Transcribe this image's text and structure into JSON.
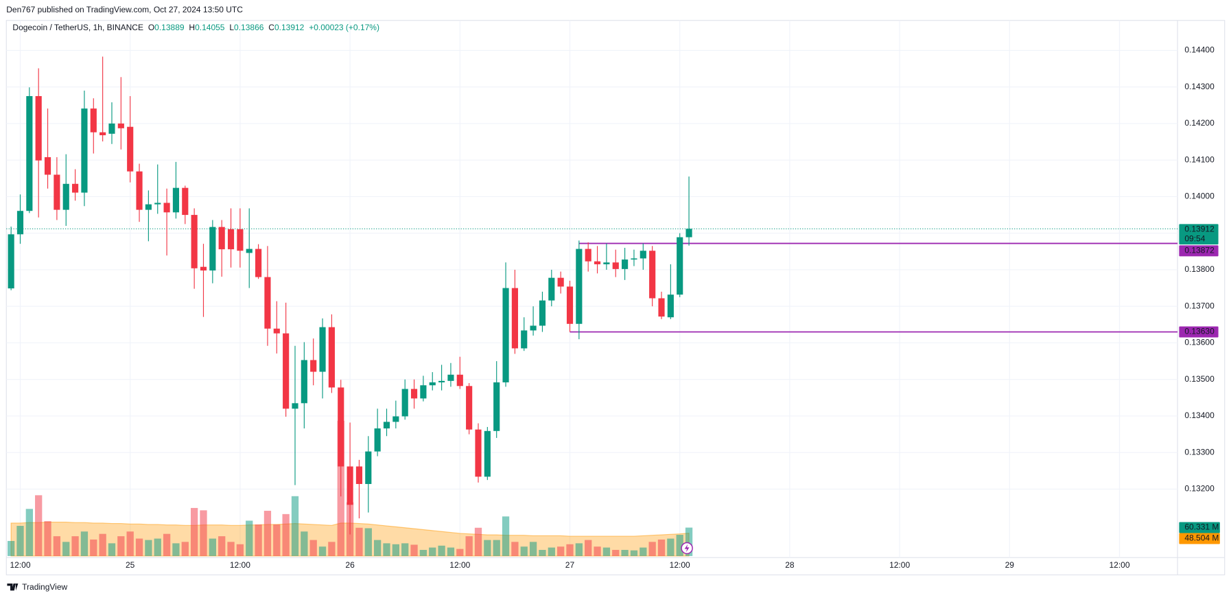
{
  "header": "Den767 published on TradingView.com, Oct 27, 2024 13:50 UTC",
  "footer": "TradingView",
  "chart_data": {
    "type": "candlestick",
    "symbol": "Dogecoin / TetherUS, 1h, BINANCE",
    "legend": {
      "open": {
        "label": "O",
        "value": "0.13889"
      },
      "high": {
        "label": "H",
        "value": "0.14055"
      },
      "low": {
        "label": "L",
        "value": "0.13866"
      },
      "close": {
        "label": "C",
        "value": "0.13912"
      },
      "change": "+0.00023 (+0.17%)"
    },
    "up_color": "#089981",
    "down_color": "#f23645",
    "open": [
      0.13749,
      0.13897,
      0.13961,
      0.14275,
      0.14108,
      0.1406,
      0.13964,
      0.14035,
      0.14011,
      0.14241,
      0.14176,
      0.14172,
      0.142,
      0.14191,
      0.14069,
      0.13964,
      0.13979,
      0.13983,
      0.13957,
      0.14024,
      0.1395,
      0.13808,
      0.13798,
      0.13917,
      0.13911,
      0.13911,
      0.13846,
      0.13857,
      0.1378,
      0.13639,
      0.13626,
      0.1342,
      0.13435,
      0.13553,
      0.13521,
      0.13643,
      0.13478,
      0.13262,
      0.13262,
      0.13214,
      0.13303,
      0.13366,
      0.13384,
      0.13399,
      0.13474,
      0.13448,
      0.13484,
      0.13492,
      0.13496,
      0.13513,
      0.13482,
      0.13363,
      0.13234,
      0.13359,
      0.13492,
      0.1375,
      0.13585,
      0.13634,
      0.13647,
      0.13716,
      0.13778,
      0.13754,
      0.13652,
      0.13857,
      0.13823,
      0.13815,
      0.1382,
      0.13802,
      0.13828,
      0.13831,
      0.13852,
      0.13722,
      0.1367,
      0.13732,
      0.13889
    ],
    "high": [
      0.13918,
      0.14006,
      0.14299,
      0.14351,
      0.14241,
      0.14108,
      0.14116,
      0.14075,
      0.1429,
      0.14269,
      0.14383,
      0.14258,
      0.14327,
      0.14275,
      0.1409,
      0.14017,
      0.14088,
      0.14022,
      0.14095,
      0.1403,
      0.13968,
      0.13871,
      0.13936,
      0.13936,
      0.13968,
      0.13968,
      0.13968,
      0.1387,
      0.13865,
      0.13714,
      0.1371,
      0.13592,
      0.13602,
      0.13612,
      0.13667,
      0.13678,
      0.13499,
      0.13382,
      0.1328,
      0.13345,
      0.1342,
      0.1342,
      0.13442,
      0.135,
      0.135,
      0.1351,
      0.1352,
      0.1354,
      0.13545,
      0.13562,
      0.1349,
      0.1338,
      0.1337,
      0.1355,
      0.1382,
      0.138,
      0.1367,
      0.137,
      0.1374,
      0.138,
      0.13795,
      0.1377,
      0.1388,
      0.13875,
      0.13865,
      0.13872,
      0.13855,
      0.1386,
      0.13855,
      0.13872,
      0.13865,
      0.1374,
      0.13815,
      0.139,
      0.14055
    ],
    "low": [
      0.13744,
      0.13871,
      0.13955,
      0.13943,
      0.14022,
      0.13936,
      0.1392,
      0.13989,
      0.13974,
      0.14118,
      0.14151,
      0.14144,
      0.14129,
      0.14039,
      0.13931,
      0.13878,
      0.13953,
      0.13839,
      0.1394,
      0.13925,
      0.13748,
      0.13671,
      0.13763,
      0.13781,
      0.13806,
      0.13806,
      0.1375,
      0.13775,
      0.13592,
      0.13571,
      0.13398,
      0.13211,
      0.13366,
      0.13484,
      0.13448,
      0.13463,
      0.1318,
      0.13076,
      0.1312,
      0.13136,
      0.1329,
      0.13345,
      0.13366,
      0.1339,
      0.1342,
      0.1344,
      0.1347,
      0.1347,
      0.1348,
      0.13474,
      0.1335,
      0.13218,
      0.13225,
      0.1334,
      0.1348,
      0.1357,
      0.13578,
      0.1362,
      0.1363,
      0.137,
      0.13735,
      0.1363,
      0.1361,
      0.13795,
      0.1379,
      0.138,
      0.1378,
      0.13772,
      0.1381,
      0.138,
      0.137,
      0.13665,
      0.13665,
      0.13725,
      0.13866
    ],
    "close": [
      0.13897,
      0.13961,
      0.14275,
      0.14099,
      0.1406,
      0.13964,
      0.14035,
      0.14011,
      0.14241,
      0.14176,
      0.14168,
      0.142,
      0.14187,
      0.14069,
      0.13964,
      0.13979,
      0.13983,
      0.13957,
      0.14024,
      0.1395,
      0.13804,
      0.13798,
      0.13917,
      0.13856,
      0.13856,
      0.13852,
      0.13857,
      0.1378,
      0.13639,
      0.13626,
      0.1342,
      0.13435,
      0.13553,
      0.13521,
      0.13643,
      0.13478,
      0.13262,
      0.13157,
      0.13214,
      0.13303,
      0.13366,
      0.13384,
      0.13399,
      0.13474,
      0.13448,
      0.13484,
      0.13492,
      0.13496,
      0.13513,
      0.13482,
      0.13363,
      0.13234,
      0.13359,
      0.13492,
      0.1375,
      0.13585,
      0.13634,
      0.13647,
      0.13716,
      0.13778,
      0.13754,
      0.13652,
      0.13857,
      0.13823,
      0.13815,
      0.1382,
      0.13802,
      0.13828,
      0.13831,
      0.13852,
      0.13722,
      0.13672,
      0.13732,
      0.13889,
      0.13912
    ],
    "volume": [
      32,
      64,
      100,
      129,
      74,
      42,
      30,
      42,
      52,
      35,
      47,
      27,
      42,
      52,
      37,
      34,
      37,
      47,
      27,
      30,
      102,
      97,
      37,
      42,
      30,
      25,
      75,
      67,
      96,
      67,
      89,
      127,
      52,
      34,
      20,
      30,
      287,
      114,
      60,
      59,
      34,
      27,
      25,
      27,
      24,
      13,
      18,
      22,
      18,
      15,
      42,
      60,
      34,
      34,
      84,
      30,
      20,
      30,
      13,
      18,
      20,
      25,
      27,
      34,
      20,
      18,
      13,
      13,
      12,
      18,
      30,
      35,
      37,
      45,
      60.331
    ],
    "volume_ma": [
      70,
      70,
      71,
      71,
      72,
      72,
      72,
      71,
      71,
      70,
      70,
      69,
      69,
      68,
      68,
      67,
      67,
      66,
      66,
      65,
      65,
      66,
      66,
      66,
      65,
      65,
      66,
      66,
      67,
      67,
      68,
      69,
      68,
      67,
      66,
      65,
      70,
      70,
      69,
      68,
      66,
      64,
      62,
      60,
      58,
      56,
      54,
      52,
      50,
      48,
      47,
      46,
      45,
      45,
      44,
      44,
      44,
      43,
      43,
      43,
      43,
      42,
      42,
      42,
      42,
      42,
      42,
      42,
      42,
      43,
      44,
      45,
      46,
      47,
      48.504
    ],
    "volume_label": "60.331 M",
    "volume_ma_label": "48.504 M",
    "volume_ma_color": "#ff9800",
    "ylim": [
      0.13017,
      0.14482
    ],
    "yticks": [
      {
        "value": 0.132,
        "label": "0.13200"
      },
      {
        "value": 0.133,
        "label": "0.13300"
      },
      {
        "value": 0.134,
        "label": "0.13400"
      },
      {
        "value": 0.135,
        "label": "0.13500"
      },
      {
        "value": 0.136,
        "label": "0.13600"
      },
      {
        "value": 0.137,
        "label": "0.13700"
      },
      {
        "value": 0.138,
        "label": "0.13800"
      },
      {
        "value": 0.139,
        "label": "0.13900"
      },
      {
        "value": 0.14,
        "label": "0.14000"
      },
      {
        "value": 0.141,
        "label": "0.14100"
      },
      {
        "value": 0.142,
        "label": "0.14200"
      },
      {
        "value": 0.143,
        "label": "0.14300"
      },
      {
        "value": 0.144,
        "label": "0.14400"
      }
    ],
    "time_labels": [
      "12:00",
      "25",
      "12:00",
      "26",
      "12:00",
      "27",
      "12:00",
      "28",
      "12:00",
      "29",
      "12:00"
    ],
    "last_price": {
      "value": 0.13912,
      "label": "0.13912",
      "countdown": "09:54"
    },
    "levels": [
      {
        "value": 0.13872,
        "label": "0.13872",
        "color": "#9c27b0"
      },
      {
        "value": 0.1363,
        "label": "0.13630",
        "color": "#9c27b0"
      }
    ],
    "grid": true
  }
}
